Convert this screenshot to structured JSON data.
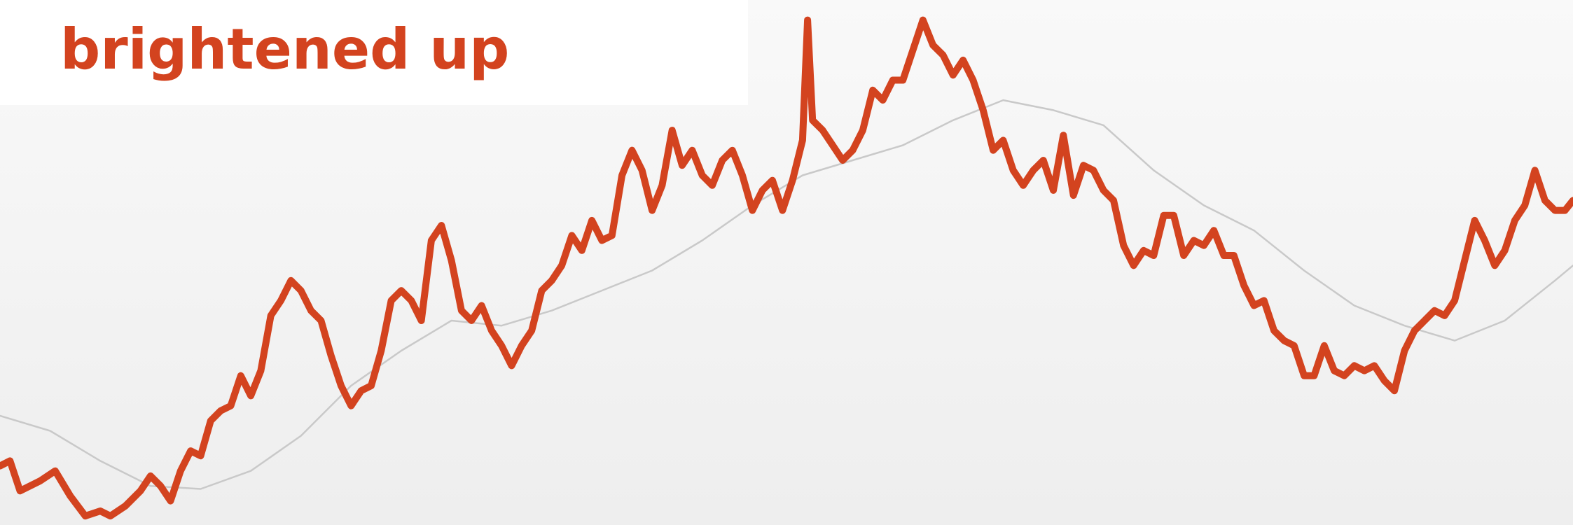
{
  "chart_data": {
    "type": "line",
    "title": "brightened up",
    "xlim": [
      0,
      1568
    ],
    "ylim": [
      0,
      524
    ],
    "series": [
      {
        "color": "#d3431f",
        "x": [
          0,
          10,
          20,
          40,
          55,
          70,
          85,
          100,
          110,
          125,
          140,
          150,
          160,
          170,
          180,
          190,
          200,
          210,
          220,
          230,
          240,
          250,
          260,
          270,
          280,
          290,
          300,
          310,
          320,
          330,
          340,
          350,
          360,
          370,
          380,
          390,
          400,
          410,
          420,
          430,
          440,
          450,
          460,
          470,
          480,
          490,
          500,
          510,
          520,
          530,
          540,
          550,
          560,
          570,
          580,
          590,
          600,
          610,
          620,
          630,
          640,
          650,
          660,
          670,
          680,
          690,
          700,
          710,
          720,
          730,
          740,
          750,
          760,
          770,
          780,
          790,
          800,
          805,
          810,
          820,
          830,
          840,
          850,
          860,
          870,
          880,
          890,
          900,
          910,
          920,
          930,
          940,
          950,
          960,
          970,
          980,
          990,
          1000,
          1010,
          1020,
          1030,
          1040,
          1050,
          1060,
          1070,
          1080,
          1090,
          1100,
          1110,
          1120,
          1130,
          1140,
          1150,
          1160,
          1170,
          1180,
          1190,
          1200,
          1210,
          1220,
          1230,
          1240,
          1250,
          1260,
          1270,
          1280,
          1290,
          1300,
          1310,
          1320,
          1330,
          1340,
          1350,
          1360,
          1370,
          1380,
          1390,
          1400,
          1410,
          1420,
          1430,
          1440,
          1450,
          1460,
          1470,
          1480,
          1490,
          1500,
          1510,
          1520,
          1530,
          1540,
          1550,
          1560,
          1568
        ],
        "values": [
          59,
          64,
          34,
          44,
          54,
          29,
          9,
          14,
          9,
          19,
          34,
          49,
          39,
          24,
          54,
          74,
          69,
          104,
          114,
          119,
          149,
          129,
          154,
          209,
          224,
          244,
          234,
          214,
          204,
          169,
          139,
          119,
          134,
          139,
          174,
          224,
          234,
          224,
          204,
          284,
          299,
          264,
          214,
          204,
          219,
          194,
          179,
          159,
          179,
          194,
          234,
          244,
          259,
          289,
          274,
          304,
          284,
          289,
          349,
          374,
          354,
          314,
          339,
          394,
          359,
          374,
          349,
          339,
          364,
          374,
          349,
          314,
          334,
          344,
          314,
          344,
          384,
          504,
          404,
          394,
          379,
          364,
          374,
          394,
          434,
          424,
          444,
          444,
          474,
          504,
          479,
          469,
          449,
          464,
          444,
          414,
          374,
          384,
          354,
          339,
          354,
          364,
          334,
          389,
          329,
          359,
          354,
          334,
          324,
          279,
          259,
          274,
          269,
          309,
          309,
          269,
          284,
          279,
          294,
          269,
          269,
          239,
          219,
          224,
          194,
          184,
          179,
          149,
          149,
          179,
          154,
          149,
          159,
          154,
          159,
          144,
          134,
          174,
          194,
          204,
          214,
          209,
          224,
          264,
          304,
          284,
          259,
          274,
          304,
          319,
          354,
          324,
          314,
          314,
          324
        ]
      },
      {
        "color": "#c9c9c9",
        "x": [
          0,
          50,
          100,
          150,
          200,
          250,
          300,
          350,
          400,
          450,
          500,
          550,
          600,
          650,
          700,
          750,
          800,
          850,
          900,
          950,
          1000,
          1050,
          1100,
          1150,
          1200,
          1250,
          1300,
          1350,
          1400,
          1450,
          1500,
          1550,
          1568
        ],
        "values": [
          109,
          94,
          64,
          39,
          36,
          54,
          89,
          139,
          174,
          204,
          199,
          214,
          234,
          254,
          284,
          319,
          349,
          364,
          379,
          404,
          424,
          414,
          399,
          354,
          319,
          294,
          254,
          219,
          199,
          184,
          204,
          244,
          259
        ]
      }
    ]
  }
}
